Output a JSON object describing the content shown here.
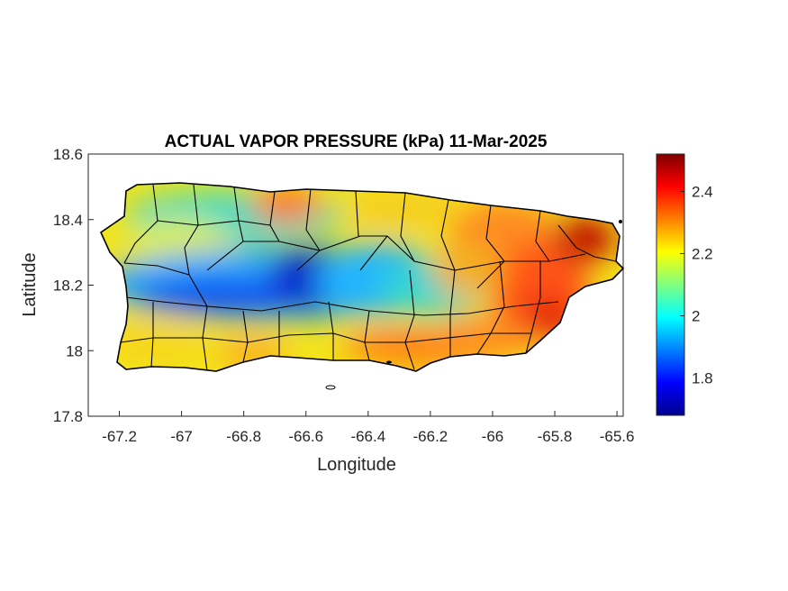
{
  "chart_data": {
    "type": "heatmap",
    "title": "ACTUAL VAPOR PRESSURE (kPa) 11-Mar-2025",
    "xlabel": "Longitude",
    "ylabel": "Latitude",
    "xlim": [
      -67.3,
      -65.58
    ],
    "ylim": [
      17.8,
      18.6
    ],
    "x_ticks": [
      -67.2,
      -67,
      -66.8,
      -66.6,
      -66.4,
      -66.2,
      -66,
      -65.8,
      -65.6
    ],
    "y_ticks": [
      17.8,
      18,
      18.2,
      18.4,
      18.6
    ],
    "grid": false,
    "colormap": "jet",
    "colorbar": {
      "limits": [
        1.68,
        2.52
      ],
      "ticks": [
        1.8,
        2,
        2.2,
        2.4
      ],
      "placement": "right"
    },
    "region": "Puerto Rico municipalities",
    "field_samples": [
      {
        "lon": -67.2,
        "lat": 18.35,
        "value": 2.25
      },
      {
        "lon": -67.0,
        "lat": 18.45,
        "value": 2.05
      },
      {
        "lon": -66.85,
        "lat": 18.15,
        "value": 1.82
      },
      {
        "lon": -66.6,
        "lat": 18.2,
        "value": 1.72
      },
      {
        "lon": -66.45,
        "lat": 18.22,
        "value": 1.95
      },
      {
        "lon": -66.7,
        "lat": 18.45,
        "value": 2.4
      },
      {
        "lon": -66.2,
        "lat": 18.18,
        "value": 2.05
      },
      {
        "lon": -66.0,
        "lat": 18.38,
        "value": 2.35
      },
      {
        "lon": -65.7,
        "lat": 18.35,
        "value": 2.5
      },
      {
        "lon": -65.8,
        "lat": 18.05,
        "value": 2.45
      },
      {
        "lon": -66.3,
        "lat": 17.98,
        "value": 2.35
      },
      {
        "lon": -67.15,
        "lat": 18.05,
        "value": 2.25
      }
    ]
  },
  "colors": {
    "jet_stops": [
      "#00008f",
      "#0000ff",
      "#00ffff",
      "#ffff00",
      "#ff0000",
      "#800000"
    ],
    "border": "#000000"
  }
}
